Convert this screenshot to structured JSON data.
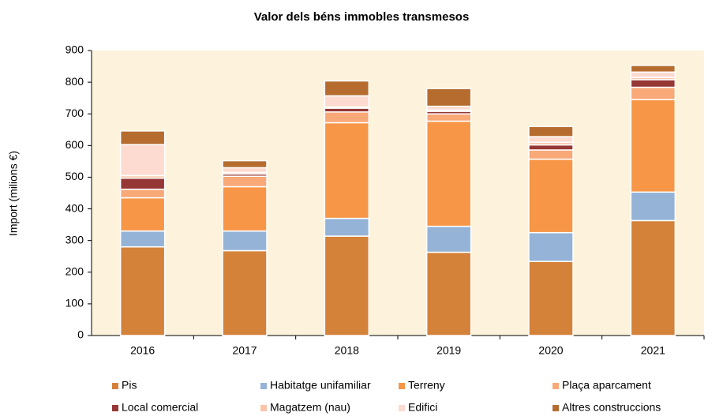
{
  "chart_data": {
    "type": "stacked_bar",
    "title": "Valor dels béns immobles transmesos",
    "ylabel": "Import (milions €)",
    "categories": [
      "2016",
      "2017",
      "2018",
      "2019",
      "2020",
      "2021"
    ],
    "series": [
      {
        "name": "Pis",
        "color": "#d4823a",
        "values": [
          280,
          268,
          314,
          263,
          234,
          363
        ]
      },
      {
        "name": "Habitatge unifamiliar",
        "color": "#95b3d7",
        "values": [
          50,
          62,
          56,
          82,
          91,
          90
        ]
      },
      {
        "name": "Terreny",
        "color": "#f79646",
        "values": [
          105,
          140,
          302,
          332,
          232,
          292
        ]
      },
      {
        "name": "Plaça aparcament",
        "color": "#f9a878",
        "values": [
          27,
          33,
          34,
          23,
          29,
          39
        ]
      },
      {
        "name": "Local comercial",
        "color": "#953735",
        "values": [
          35,
          7,
          12,
          8,
          16,
          24
        ]
      },
      {
        "name": "Magatzem (nau)",
        "color": "#fac4a8",
        "values": [
          8,
          5,
          4,
          4,
          8,
          7
        ]
      },
      {
        "name": "Edifici",
        "color": "#fddbd0",
        "values": [
          98,
          15,
          35,
          12,
          18,
          17
        ]
      },
      {
        "name": "Altres construccions",
        "color": "#b56c2e",
        "values": [
          43,
          22,
          47,
          56,
          32,
          21
        ]
      }
    ],
    "ylim": [
      0,
      900
    ],
    "yticks": [
      0,
      100,
      200,
      300,
      400,
      500,
      600,
      700,
      800,
      900
    ]
  }
}
